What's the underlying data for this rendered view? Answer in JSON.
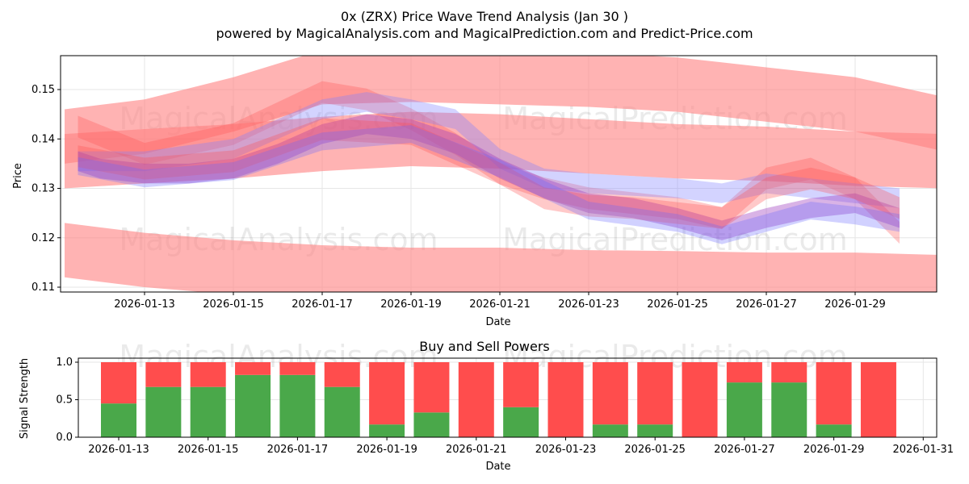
{
  "title": "0x (ZRX) Price Wave Trend Analysis (Jan 30 )",
  "subtitle": "powered by MagicalAnalysis.com and MagicalPrediction.com and Predict-Price.com",
  "watermarks": [
    "MagicalAnalysis.com",
    "MagicalPrediction.com"
  ],
  "colors": {
    "red": "#ff4d4d",
    "green": "#4aa84a",
    "blue": "#6666ff",
    "band_red": "#ffa0a0"
  },
  "chart_data": [
    {
      "type": "area",
      "title": "",
      "xlabel": "Date",
      "ylabel": "Price",
      "ylim": [
        0.109,
        0.1569
      ],
      "xlim_day_of_jan_2026": [
        11.1,
        30.84
      ],
      "x_ticks": [
        "2026-01-13",
        "2026-01-15",
        "2026-01-17",
        "2026-01-19",
        "2026-01-21",
        "2026-01-23",
        "2026-01-25",
        "2026-01-27",
        "2026-01-29"
      ],
      "x_tick_days": [
        13,
        15,
        17,
        19,
        21,
        23,
        25,
        27,
        29
      ],
      "y_ticks": [
        "0.11",
        "0.12",
        "0.13",
        "0.14",
        "0.15"
      ],
      "y_tick_values": [
        0.11,
        0.12,
        0.13,
        0.14,
        0.15
      ],
      "grid": true,
      "bands": [
        {
          "name": "upper-red-band",
          "color": "#ff8080",
          "opacity": 0.6,
          "half_width": 0.0055,
          "days": [
            11.2,
            13,
            15,
            17,
            19,
            21,
            23,
            25,
            27,
            29,
            31
          ],
          "values": [
            0.1405,
            0.1425,
            0.147,
            0.1525,
            0.153,
            0.1525,
            0.152,
            0.151,
            0.149,
            0.147,
            0.143
          ]
        },
        {
          "name": "middle-red-band",
          "color": "#ff8080",
          "opacity": 0.6,
          "half_width": 0.0055,
          "days": [
            11.2,
            13,
            15,
            17,
            19,
            21,
            23,
            25,
            27,
            29,
            31
          ],
          "values": [
            0.1355,
            0.1365,
            0.1375,
            0.139,
            0.14,
            0.1395,
            0.1385,
            0.1375,
            0.137,
            0.136,
            0.1355
          ]
        },
        {
          "name": "lower-red-band",
          "color": "#ff8080",
          "opacity": 0.6,
          "half_width": 0.0055,
          "days": [
            11.2,
            13,
            15,
            17,
            19,
            21,
            23,
            25,
            27,
            29,
            31
          ],
          "values": [
            0.1175,
            0.1155,
            0.114,
            0.113,
            0.1125,
            0.1125,
            0.112,
            0.1118,
            0.1115,
            0.1115,
            0.111
          ]
        },
        {
          "name": "wave-band-red-high",
          "color": "#ff5050",
          "opacity": 0.3,
          "half_width": 0.0022,
          "days": [
            11.5,
            13,
            15,
            17,
            18,
            19,
            20,
            21,
            22,
            23,
            24,
            25,
            26,
            27,
            28,
            29,
            30
          ],
          "values": [
            0.1425,
            0.137,
            0.141,
            0.1495,
            0.148,
            0.144,
            0.139,
            0.133,
            0.13,
            0.128,
            0.127,
            0.126,
            0.124,
            0.132,
            0.134,
            0.13,
            0.121
          ]
        },
        {
          "name": "wave-band-blue-high",
          "color": "#8080ff",
          "opacity": 0.35,
          "half_width": 0.002,
          "days": [
            11.5,
            13,
            15,
            17,
            18,
            19,
            20,
            21,
            22,
            23,
            24,
            25,
            26,
            27,
            28,
            29,
            30
          ],
          "values": [
            0.1355,
            0.1355,
            0.138,
            0.146,
            0.1475,
            0.146,
            0.144,
            0.136,
            0.132,
            0.131,
            0.1305,
            0.13,
            0.129,
            0.131,
            0.13,
            0.129,
            0.128
          ]
        },
        {
          "name": "wave-band-purple-main",
          "color": "#a040c0",
          "opacity": 0.4,
          "half_width": 0.002,
          "days": [
            11.5,
            12,
            13,
            14,
            15,
            16,
            17,
            18,
            19,
            20,
            21,
            22,
            23,
            24,
            25,
            26,
            27,
            28,
            29,
            30
          ],
          "values": [
            0.1355,
            0.134,
            0.133,
            0.133,
            0.134,
            0.137,
            0.141,
            0.143,
            0.142,
            0.139,
            0.134,
            0.13,
            0.127,
            0.126,
            0.124,
            0.1215,
            0.124,
            0.126,
            0.127,
            0.124
          ]
        },
        {
          "name": "wave-band-red-mid",
          "color": "#ff4d4d",
          "opacity": 0.3,
          "half_width": 0.0022,
          "days": [
            11.5,
            13,
            15,
            17,
            19,
            21,
            22,
            23,
            24,
            25,
            26,
            27,
            28,
            29,
            30
          ],
          "values": [
            0.1365,
            0.134,
            0.1355,
            0.142,
            0.141,
            0.133,
            0.128,
            0.1265,
            0.126,
            0.125,
            0.124,
            0.13,
            0.132,
            0.13,
            0.126
          ]
        },
        {
          "name": "wave-band-blue-low",
          "color": "#6666ff",
          "opacity": 0.3,
          "half_width": 0.0018,
          "days": [
            11.5,
            13,
            15,
            17,
            19,
            21,
            23,
            25,
            26,
            27,
            28,
            29,
            30
          ],
          "values": [
            0.1345,
            0.132,
            0.1335,
            0.1395,
            0.141,
            0.134,
            0.1255,
            0.123,
            0.1205,
            0.123,
            0.1255,
            0.1245,
            0.123
          ]
        }
      ]
    },
    {
      "type": "bar",
      "title": "Buy and Sell Powers",
      "xlabel": "Date",
      "ylabel": "Signal Strength",
      "ylim": [
        0,
        1.05
      ],
      "y_ticks": [
        "0.0",
        "0.5",
        "1.0"
      ],
      "y_tick_values": [
        0,
        0.5,
        1.0
      ],
      "x_ticks": [
        "2026-01-13",
        "2026-01-15",
        "2026-01-17",
        "2026-01-19",
        "2026-01-21",
        "2026-01-23",
        "2026-01-25",
        "2026-01-27",
        "2026-01-29",
        "2026-01-31"
      ],
      "x_tick_days": [
        13,
        15,
        17,
        19,
        21,
        23,
        25,
        27,
        29,
        31
      ],
      "days": [
        13,
        14,
        15,
        16,
        17,
        18,
        19,
        20,
        21,
        22,
        23,
        24,
        25,
        26,
        27,
        28,
        29,
        30
      ],
      "series": [
        {
          "name": "Buy",
          "color": "#4aa84a",
          "values": [
            0.45,
            0.67,
            0.67,
            0.83,
            0.83,
            0.67,
            0.17,
            0.33,
            0,
            0.4,
            0,
            0.17,
            0.17,
            0,
            0.73,
            0.73,
            0.17,
            0
          ]
        },
        {
          "name": "Sell",
          "color": "#ff4d4d",
          "values": [
            0.55,
            0.33,
            0.33,
            0.17,
            0.17,
            0.33,
            0.83,
            0.67,
            1,
            0.6,
            1,
            0.83,
            0.83,
            1,
            0.27,
            0.27,
            0.83,
            1
          ]
        }
      ]
    }
  ]
}
